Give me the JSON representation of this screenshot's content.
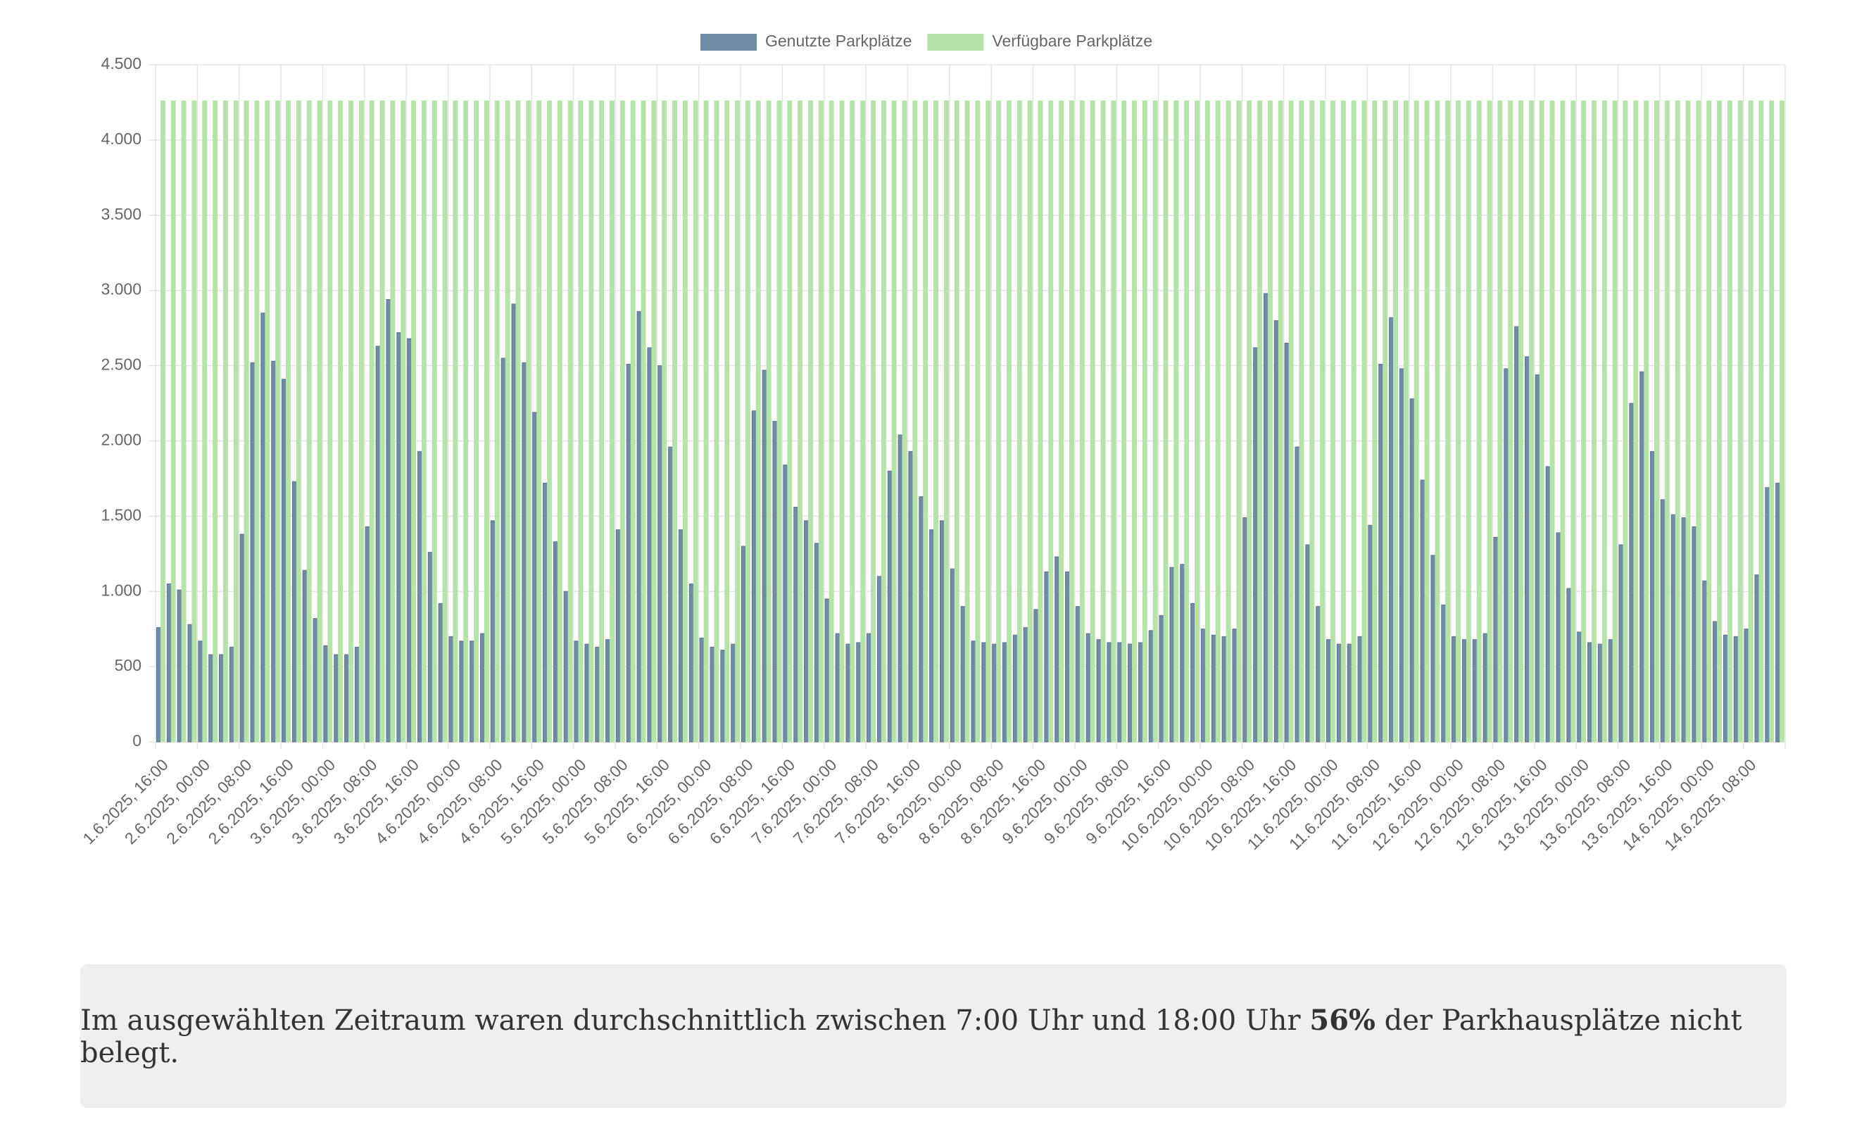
{
  "chart_data": {
    "type": "bar",
    "categories": [
      "1.6.2025, 16:00",
      null,
      null,
      null,
      "2.6.2025, 00:00",
      null,
      null,
      null,
      "2.6.2025, 08:00",
      null,
      null,
      null,
      "2.6.2025, 16:00",
      null,
      null,
      null,
      "3.6.2025, 00:00",
      null,
      null,
      null,
      "3.6.2025, 08:00",
      null,
      null,
      null,
      "3.6.2025, 16:00",
      null,
      null,
      null,
      "4.6.2025, 00:00",
      null,
      null,
      null,
      "4.6.2025, 08:00",
      null,
      null,
      null,
      "4.6.2025, 16:00",
      null,
      null,
      null,
      "5.6.2025, 00:00",
      null,
      null,
      null,
      "5.6.2025, 08:00",
      null,
      null,
      null,
      "5.6.2025, 16:00",
      null,
      null,
      null,
      "6.6.2025, 00:00",
      null,
      null,
      null,
      "6.6.2025, 08:00",
      null,
      null,
      null,
      "6.6.2025, 16:00",
      null,
      null,
      null,
      "7.6.2025, 00:00",
      null,
      null,
      null,
      "7.6.2025, 08:00",
      null,
      null,
      null,
      "7.6.2025, 16:00",
      null,
      null,
      null,
      "8.6.2025, 00:00",
      null,
      null,
      null,
      "8.6.2025, 08:00",
      null,
      null,
      null,
      "8.6.2025, 16:00",
      null,
      null,
      null,
      "9.6.2025, 00:00",
      null,
      null,
      null,
      "9.6.2025, 08:00",
      null,
      null,
      null,
      "9.6.2025, 16:00",
      null,
      null,
      null,
      "10.6.2025, 00:00",
      null,
      null,
      null,
      "10.6.2025, 08:00",
      null,
      null,
      null,
      "10.6.2025, 16:00",
      null,
      null,
      null,
      "11.6.2025, 00:00",
      null,
      null,
      null,
      "11.6.2025, 08:00",
      null,
      null,
      null,
      "11.6.2025, 16:00",
      null,
      null,
      null,
      "12.6.2025, 00:00",
      null,
      null,
      null,
      "12.6.2025, 08:00",
      null,
      null,
      null,
      "12.6.2025, 16:00",
      null,
      null,
      null,
      "13.6.2025, 00:00",
      null,
      null,
      null,
      "13.6.2025, 08:00",
      null,
      null,
      null,
      "13.6.2025, 16:00",
      null,
      null,
      null,
      "14.6.2025, 00:00",
      null,
      null,
      null,
      "14.6.2025, 08:00",
      null,
      null,
      null
    ],
    "series": [
      {
        "name": "Genutzte Parkplätze",
        "color": "#6f8ba5",
        "values": [
          760,
          1050,
          1010,
          780,
          670,
          580,
          580,
          630,
          1380,
          2520,
          2850,
          2530,
          2410,
          1730,
          1140,
          820,
          640,
          580,
          580,
          630,
          1430,
          2630,
          2940,
          2720,
          2680,
          1930,
          1260,
          920,
          700,
          670,
          670,
          720,
          1470,
          2550,
          2910,
          2520,
          2190,
          1720,
          1330,
          1000,
          670,
          650,
          630,
          680,
          1410,
          2510,
          2860,
          2620,
          2500,
          1960,
          1410,
          1050,
          690,
          630,
          610,
          650,
          1300,
          2200,
          2470,
          2130,
          1840,
          1560,
          1470,
          1320,
          950,
          720,
          650,
          660,
          720,
          1100,
          1800,
          2040,
          1930,
          1630,
          1410,
          1470,
          1150,
          900,
          670,
          660,
          650,
          660,
          710,
          760,
          880,
          1130,
          1230,
          1130,
          900,
          720,
          680,
          660,
          660,
          650,
          660,
          740,
          840,
          1160,
          1180,
          920,
          750,
          710,
          700,
          750,
          1490,
          2620,
          2980,
          2800,
          2650,
          1960,
          1310,
          900,
          680,
          650,
          650,
          700,
          1440,
          2510,
          2820,
          2480,
          2280,
          1740,
          1240,
          910,
          700,
          680,
          680,
          720,
          1360,
          2480,
          2760,
          2560,
          2440,
          1830,
          1390,
          1020,
          730,
          660,
          650,
          680,
          1310,
          2250,
          2460,
          1930,
          1610,
          1510,
          1490,
          1430,
          1070,
          800,
          710,
          700,
          750,
          1110,
          1690,
          1720
        ]
      },
      {
        "name": "Verfügbare Parkplätze",
        "color": "#b5e3a8",
        "values": [
          4260,
          4260,
          4260,
          4260,
          4260,
          4260,
          4260,
          4260,
          4260,
          4260,
          4260,
          4260,
          4260,
          4260,
          4260,
          4260,
          4260,
          4260,
          4260,
          4260,
          4260,
          4260,
          4260,
          4260,
          4260,
          4260,
          4260,
          4260,
          4260,
          4260,
          4260,
          4260,
          4260,
          4260,
          4260,
          4260,
          4260,
          4260,
          4260,
          4260,
          4260,
          4260,
          4260,
          4260,
          4260,
          4260,
          4260,
          4260,
          4260,
          4260,
          4260,
          4260,
          4260,
          4260,
          4260,
          4260,
          4260,
          4260,
          4260,
          4260,
          4260,
          4260,
          4260,
          4260,
          4260,
          4260,
          4260,
          4260,
          4260,
          4260,
          4260,
          4260,
          4260,
          4260,
          4260,
          4260,
          4260,
          4260,
          4260,
          4260,
          4260,
          4260,
          4260,
          4260,
          4260,
          4260,
          4260,
          4260,
          4260,
          4260,
          4260,
          4260,
          4260,
          4260,
          4260,
          4260,
          4260,
          4260,
          4260,
          4260,
          4260,
          4260,
          4260,
          4260,
          4260,
          4260,
          4260,
          4260,
          4260,
          4260,
          4260,
          4260,
          4260,
          4260,
          4260,
          4260,
          4260,
          4260,
          4260,
          4260,
          4260,
          4260,
          4260,
          4260,
          4260,
          4260,
          4260,
          4260,
          4260,
          4260,
          4260,
          4260,
          4260,
          4260,
          4260,
          4260,
          4260,
          4260,
          4260,
          4260,
          4260,
          4260,
          4260,
          4260,
          4260,
          4260,
          4260,
          4260,
          4260,
          4260,
          4260,
          4260,
          4260,
          4260,
          4260,
          4260
        ]
      }
    ],
    "ylim": [
      0,
      4500
    ],
    "yticks": [
      0,
      500,
      {
        "value": 1000,
        "label": "1.000"
      },
      {
        "value": 1500,
        "label": "1.500"
      },
      {
        "value": 2000,
        "label": "2.000"
      },
      {
        "value": 2500,
        "label": "2.500"
      },
      {
        "value": 3000,
        "label": "3.000"
      },
      {
        "value": 3500,
        "label": "3.500"
      },
      {
        "value": 4000,
        "label": "4.000"
      },
      {
        "value": 4500,
        "label": "4.500"
      }
    ],
    "grid": true,
    "legend": "top"
  },
  "summary": {
    "before": "Im ausgewählten Zeitraum waren durchschnittlich zwischen 7:00 Uhr und 18:00 Uhr",
    "highlight": "56%",
    "after": "der Parkhausplätze nicht belegt."
  }
}
